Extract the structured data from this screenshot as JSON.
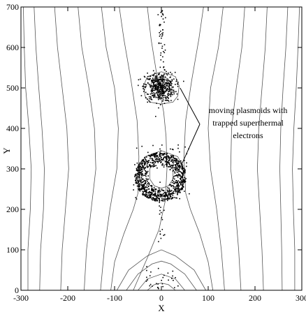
{
  "chart_data": {
    "type": "scatter",
    "xlabel": "X",
    "ylabel": "Y",
    "xlim": [
      -300,
      300
    ],
    "ylim": [
      0,
      700
    ],
    "xticks": [
      -300,
      -200,
      -100,
      0,
      100,
      200,
      300
    ],
    "yticks": [
      0,
      100,
      200,
      300,
      400,
      500,
      600,
      700
    ],
    "xtick_labels": [
      "-300",
      "-200",
      "-100",
      "0",
      "100",
      "200",
      "300"
    ],
    "ytick_labels": [
      "0",
      "100",
      "200",
      "300",
      "400",
      "500",
      "600",
      "700"
    ],
    "grid": false,
    "legend": "none",
    "annotation": {
      "lines": [
        "moving plasmoids with",
        "trapped superthermal",
        "electrons"
      ],
      "arrow_targets": [
        [
          40,
          500
        ],
        [
          35,
          290
        ]
      ]
    },
    "contours": [
      [
        [
          -285,
          0
        ],
        [
          -285,
          100
        ],
        [
          -280,
          200
        ],
        [
          -278,
          300
        ],
        [
          -283,
          400
        ],
        [
          -290,
          500
        ],
        [
          -293,
          600
        ],
        [
          -295,
          700
        ]
      ],
      [
        [
          -260,
          0
        ],
        [
          -258,
          100
        ],
        [
          -252,
          200
        ],
        [
          -250,
          300
        ],
        [
          -255,
          400
        ],
        [
          -262,
          500
        ],
        [
          -268,
          600
        ],
        [
          -272,
          700
        ]
      ],
      [
        [
          -215,
          0
        ],
        [
          -212,
          100
        ],
        [
          -205,
          200
        ],
        [
          -198,
          300
        ],
        [
          -202,
          400
        ],
        [
          -212,
          500
        ],
        [
          -222,
          600
        ],
        [
          -228,
          700
        ]
      ],
      [
        [
          -165,
          0
        ],
        [
          -160,
          100
        ],
        [
          -150,
          200
        ],
        [
          -140,
          300
        ],
        [
          -143,
          400
        ],
        [
          -155,
          500
        ],
        [
          -170,
          600
        ],
        [
          -178,
          700
        ]
      ],
      [
        [
          -130,
          0
        ],
        [
          -122,
          100
        ],
        [
          -110,
          200
        ],
        [
          -95,
          300
        ],
        [
          -92,
          400
        ],
        [
          -100,
          500
        ],
        [
          -118,
          600
        ],
        [
          -128,
          700
        ]
      ],
      [
        [
          -108,
          0
        ],
        [
          -100,
          70
        ],
        [
          -80,
          140
        ],
        [
          -60,
          200
        ],
        [
          -50,
          240
        ],
        [
          -48,
          330
        ],
        [
          -52,
          420
        ],
        [
          -65,
          520
        ],
        [
          -80,
          620
        ],
        [
          -90,
          700
        ]
      ],
      [
        [
          -60,
          0
        ],
        [
          -30,
          80
        ],
        [
          -5,
          150
        ],
        [
          8,
          220
        ],
        [
          12,
          300
        ],
        [
          10,
          380
        ],
        [
          5,
          440
        ],
        [
          -8,
          520
        ],
        [
          -22,
          620
        ],
        [
          -30,
          700
        ]
      ],
      [
        [
          285,
          0
        ],
        [
          285,
          100
        ],
        [
          282,
          200
        ],
        [
          280,
          300
        ],
        [
          283,
          400
        ],
        [
          288,
          500
        ],
        [
          292,
          600
        ],
        [
          295,
          700
        ]
      ],
      [
        [
          258,
          0
        ],
        [
          257,
          100
        ],
        [
          255,
          200
        ],
        [
          253,
          300
        ],
        [
          255,
          400
        ],
        [
          260,
          500
        ],
        [
          266,
          600
        ],
        [
          270,
          700
        ]
      ],
      [
        [
          218,
          0
        ],
        [
          215,
          100
        ],
        [
          210,
          200
        ],
        [
          205,
          300
        ],
        [
          208,
          400
        ],
        [
          215,
          500
        ],
        [
          222,
          600
        ],
        [
          226,
          700
        ]
      ],
      [
        [
          170,
          0
        ],
        [
          165,
          100
        ],
        [
          158,
          200
        ],
        [
          148,
          300
        ],
        [
          150,
          400
        ],
        [
          160,
          500
        ],
        [
          172,
          600
        ],
        [
          178,
          700
        ]
      ],
      [
        [
          135,
          0
        ],
        [
          128,
          100
        ],
        [
          118,
          200
        ],
        [
          105,
          300
        ],
        [
          100,
          400
        ],
        [
          105,
          500
        ],
        [
          122,
          600
        ],
        [
          132,
          700
        ]
      ],
      [
        [
          110,
          0
        ],
        [
          100,
          70
        ],
        [
          82,
          140
        ],
        [
          62,
          200
        ],
        [
          52,
          240
        ],
        [
          48,
          330
        ],
        [
          52,
          420
        ],
        [
          65,
          520
        ],
        [
          80,
          620
        ],
        [
          90,
          700
        ]
      ],
      [
        [
          -95,
          0
        ],
        [
          -70,
          50
        ],
        [
          -30,
          85
        ],
        [
          0,
          100
        ],
        [
          30,
          85
        ],
        [
          70,
          50
        ],
        [
          95,
          0
        ]
      ],
      [
        [
          -75,
          0
        ],
        [
          -50,
          40
        ],
        [
          -20,
          65
        ],
        [
          0,
          72
        ],
        [
          20,
          65
        ],
        [
          50,
          40
        ],
        [
          75,
          0
        ]
      ],
      [
        [
          -50,
          0
        ],
        [
          -30,
          28
        ],
        [
          0,
          40
        ],
        [
          30,
          28
        ],
        [
          50,
          0
        ]
      ],
      [
        [
          -30,
          0
        ],
        [
          -15,
          14
        ],
        [
          0,
          18
        ],
        [
          15,
          14
        ],
        [
          30,
          0
        ]
      ],
      [
        [
          -45,
          270
        ],
        [
          -30,
          240
        ],
        [
          0,
          230
        ],
        [
          30,
          240
        ],
        [
          45,
          270
        ],
        [
          48,
          300
        ],
        [
          35,
          330
        ],
        [
          0,
          345
        ],
        [
          -35,
          330
        ],
        [
          -48,
          300
        ],
        [
          -45,
          270
        ]
      ],
      [
        [
          -25,
          275
        ],
        [
          -15,
          258
        ],
        [
          0,
          252
        ],
        [
          15,
          258
        ],
        [
          25,
          275
        ],
        [
          25,
          300
        ],
        [
          12,
          318
        ],
        [
          0,
          322
        ],
        [
          -12,
          318
        ],
        [
          -25,
          300
        ],
        [
          -25,
          275
        ]
      ],
      [
        [
          -35,
          480
        ],
        [
          -25,
          465
        ],
        [
          0,
          460
        ],
        [
          25,
          465
        ],
        [
          35,
          480
        ],
        [
          38,
          505
        ],
        [
          30,
          528
        ],
        [
          0,
          540
        ],
        [
          -30,
          528
        ],
        [
          -38,
          505
        ],
        [
          -35,
          480
        ]
      ],
      [
        [
          -22,
          490
        ],
        [
          -12,
          478
        ],
        [
          0,
          475
        ],
        [
          12,
          478
        ],
        [
          22,
          490
        ],
        [
          22,
          512
        ],
        [
          10,
          525
        ],
        [
          0,
          528
        ],
        [
          -10,
          525
        ],
        [
          -22,
          512
        ],
        [
          -22,
          490
        ]
      ],
      [
        [
          -12,
          495
        ],
        [
          0,
          488
        ],
        [
          12,
          495
        ],
        [
          12,
          510
        ],
        [
          0,
          518
        ],
        [
          -12,
          510
        ],
        [
          -12,
          495
        ]
      ]
    ],
    "point_groups": [
      {
        "name": "",
        "kind": "ring",
        "center": [
          -2,
          280
        ],
        "r_inner": 25,
        "r_outer": 55,
        "yscale": 1.1,
        "count": 900
      },
      {
        "name": "",
        "kind": "blob",
        "center": [
          -3,
          502
        ],
        "sx": 16,
        "sy": 18,
        "count": 450
      },
      {
        "name": "",
        "kind": "stream",
        "x_spread": 4,
        "y_range": [
          545,
          695
        ],
        "count": 45
      },
      {
        "name": "",
        "kind": "stream",
        "x_spread": 4,
        "y_range": [
          120,
          225
        ],
        "count": 18
      },
      {
        "name": "",
        "kind": "scatter",
        "x_range": [
          -40,
          40
        ],
        "y_range": [
          3,
          60
        ],
        "count": 30
      },
      {
        "name": "",
        "kind": "scatter",
        "x_range": [
          -60,
          60
        ],
        "y_range": [
          225,
          360
        ],
        "count": 80
      }
    ]
  }
}
